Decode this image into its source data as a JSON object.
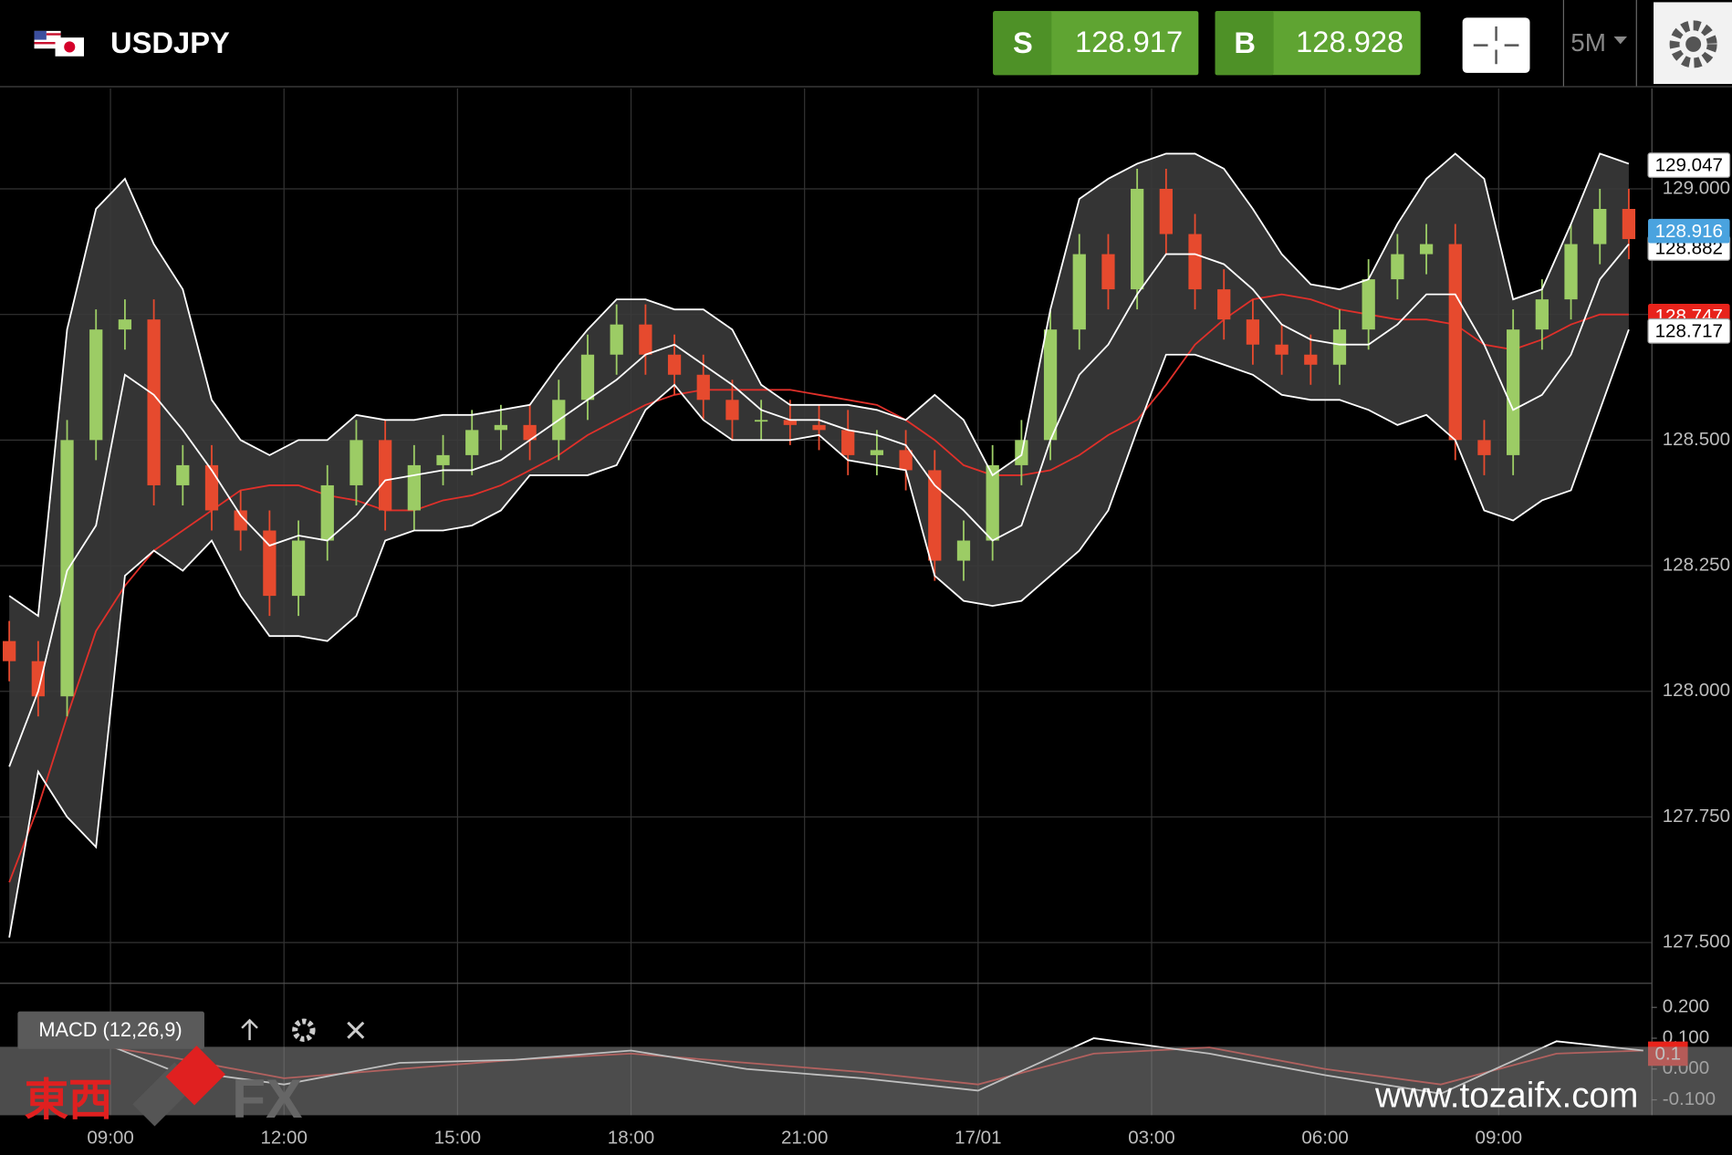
{
  "header": {
    "symbol": "USDJPY",
    "sell_label": "S",
    "sell": "128.917",
    "buy_label": "B",
    "buy": "128.928",
    "timeframe": "5M"
  },
  "chart_data": {
    "type": "candlestick",
    "x": [
      -1.75,
      -1.25,
      -0.75,
      -0.25,
      0.25,
      0.75,
      1.25,
      1.75,
      2.25,
      2.75,
      3.25,
      3.75,
      4.25,
      4.75,
      5.25,
      5.75,
      6.25,
      6.75,
      7.25,
      7.75,
      8.25,
      8.75,
      9.25,
      9.75,
      10.25,
      10.75,
      11.25,
      11.75,
      12.25,
      12.75,
      13.25,
      13.75,
      14.25,
      14.75,
      15.25,
      15.75,
      16.25,
      16.75,
      17.25,
      17.75,
      18.25,
      18.75,
      19.25,
      19.75,
      20.25,
      20.75,
      21.25,
      21.75,
      22.25,
      22.75,
      23.25,
      23.75,
      24.25,
      24.75,
      25.25,
      25.75,
      26.25
    ],
    "open": [
      128.1,
      128.06,
      127.99,
      128.5,
      128.72,
      128.74,
      128.41,
      128.45,
      128.36,
      128.32,
      128.19,
      128.3,
      128.41,
      128.5,
      128.36,
      128.45,
      128.47,
      128.52,
      128.53,
      128.5,
      128.58,
      128.67,
      128.73,
      128.67,
      128.63,
      128.58,
      128.54,
      128.54,
      128.53,
      128.52,
      128.47,
      128.48,
      128.44,
      128.26,
      128.3,
      128.45,
      128.5,
      128.72,
      128.87,
      128.8,
      129.0,
      128.91,
      128.8,
      128.74,
      128.69,
      128.67,
      128.65,
      128.72,
      128.82,
      128.87,
      128.89,
      128.5,
      128.47,
      128.72,
      128.78,
      128.89,
      128.96
    ],
    "high": [
      128.14,
      128.1,
      128.54,
      128.76,
      128.78,
      128.78,
      128.49,
      128.49,
      128.4,
      128.36,
      128.34,
      128.45,
      128.54,
      128.54,
      128.49,
      128.51,
      128.56,
      128.57,
      128.57,
      128.62,
      128.71,
      128.77,
      128.77,
      128.71,
      128.67,
      128.62,
      128.58,
      128.58,
      128.57,
      128.56,
      128.52,
      128.52,
      128.48,
      128.34,
      128.49,
      128.54,
      128.76,
      128.91,
      128.91,
      129.04,
      129.04,
      128.95,
      128.84,
      128.78,
      128.73,
      128.71,
      128.76,
      128.86,
      128.91,
      128.93,
      128.93,
      128.54,
      128.76,
      128.82,
      128.93,
      129.0,
      129.0
    ],
    "low": [
      128.02,
      127.95,
      127.95,
      128.46,
      128.68,
      128.37,
      128.37,
      128.32,
      128.28,
      128.15,
      128.15,
      128.26,
      128.37,
      128.32,
      128.32,
      128.41,
      128.43,
      128.48,
      128.46,
      128.46,
      128.54,
      128.63,
      128.63,
      128.59,
      128.54,
      128.5,
      128.5,
      128.49,
      128.48,
      128.43,
      128.43,
      128.4,
      128.22,
      128.22,
      128.26,
      128.41,
      128.46,
      128.68,
      128.76,
      128.76,
      128.87,
      128.76,
      128.7,
      128.65,
      128.63,
      128.61,
      128.61,
      128.68,
      128.78,
      128.83,
      128.46,
      128.43,
      128.43,
      128.68,
      128.74,
      128.85,
      128.86
    ],
    "close": [
      128.06,
      127.99,
      128.5,
      128.72,
      128.74,
      128.41,
      128.45,
      128.36,
      128.32,
      128.19,
      128.3,
      128.41,
      128.5,
      128.36,
      128.45,
      128.47,
      128.52,
      128.53,
      128.5,
      128.58,
      128.67,
      128.73,
      128.67,
      128.63,
      128.58,
      128.54,
      128.54,
      128.53,
      128.52,
      128.47,
      128.48,
      128.44,
      128.26,
      128.3,
      128.45,
      128.5,
      128.72,
      128.87,
      128.8,
      129.0,
      128.91,
      128.8,
      128.74,
      128.69,
      128.67,
      128.65,
      128.72,
      128.82,
      128.87,
      128.89,
      128.5,
      128.47,
      128.72,
      128.78,
      128.89,
      128.96,
      128.9
    ],
    "up_color": "#9ccc65",
    "down_color": "#e64a2e",
    "bollinger": {
      "color": "#ffffff",
      "fill": "#3a3a3a",
      "upper": [
        128.19,
        128.15,
        128.72,
        128.96,
        129.02,
        128.89,
        128.8,
        128.58,
        128.5,
        128.47,
        128.5,
        128.5,
        128.55,
        128.54,
        128.54,
        128.55,
        128.55,
        128.56,
        128.57,
        128.65,
        128.72,
        128.78,
        128.78,
        128.76,
        128.76,
        128.72,
        128.61,
        128.57,
        128.57,
        128.57,
        128.56,
        128.54,
        128.59,
        128.54,
        128.43,
        128.47,
        128.76,
        128.98,
        129.02,
        129.05,
        129.07,
        129.07,
        129.04,
        128.96,
        128.87,
        128.81,
        128.8,
        128.82,
        128.93,
        129.02,
        129.07,
        129.02,
        128.78,
        128.8,
        128.93,
        129.07,
        129.05
      ],
      "middle": [
        127.85,
        128.0,
        128.24,
        128.33,
        128.63,
        128.59,
        128.52,
        128.44,
        128.35,
        128.29,
        128.31,
        128.3,
        128.35,
        128.42,
        128.43,
        128.44,
        128.44,
        128.46,
        128.5,
        128.54,
        128.58,
        128.62,
        128.67,
        128.69,
        128.65,
        128.61,
        128.56,
        128.54,
        128.54,
        128.52,
        128.51,
        128.49,
        128.41,
        128.36,
        128.3,
        128.33,
        128.5,
        128.63,
        128.69,
        128.79,
        128.87,
        128.87,
        128.85,
        128.8,
        128.73,
        128.7,
        128.69,
        128.69,
        128.73,
        128.79,
        128.79,
        128.69,
        128.56,
        128.59,
        128.67,
        128.82,
        128.89
      ],
      "lower": [
        127.51,
        127.84,
        127.75,
        127.69,
        128.23,
        128.28,
        128.24,
        128.3,
        128.19,
        128.11,
        128.11,
        128.1,
        128.15,
        128.3,
        128.32,
        128.32,
        128.33,
        128.36,
        128.43,
        128.43,
        128.43,
        128.45,
        128.56,
        128.61,
        128.54,
        128.5,
        128.5,
        128.5,
        128.51,
        128.46,
        128.45,
        128.44,
        128.23,
        128.18,
        128.17,
        128.18,
        128.23,
        128.28,
        128.36,
        128.52,
        128.67,
        128.67,
        128.65,
        128.63,
        128.59,
        128.58,
        128.58,
        128.56,
        128.53,
        128.55,
        128.5,
        128.36,
        128.34,
        128.38,
        128.4,
        128.56,
        128.72
      ]
    },
    "moving_average": {
      "color": "#e0302a",
      "values": [
        127.62,
        127.77,
        127.95,
        128.12,
        128.21,
        128.28,
        128.32,
        128.36,
        128.4,
        128.41,
        128.41,
        128.39,
        128.38,
        128.36,
        128.36,
        128.38,
        128.39,
        128.41,
        128.44,
        128.47,
        128.51,
        128.54,
        128.57,
        128.59,
        128.6,
        128.6,
        128.6,
        128.6,
        128.59,
        128.58,
        128.57,
        128.54,
        128.5,
        128.45,
        128.43,
        128.43,
        128.44,
        128.47,
        128.51,
        128.54,
        128.61,
        128.69,
        128.74,
        128.78,
        128.79,
        128.78,
        128.76,
        128.75,
        128.74,
        128.74,
        128.73,
        128.69,
        128.68,
        128.7,
        128.73,
        128.75,
        128.75
      ]
    },
    "xlim": [
      -1.91,
      26.64
    ],
    "xticks": [
      {
        "value": 0,
        "label": "09:00"
      },
      {
        "value": 3,
        "label": "12:00"
      },
      {
        "value": 6,
        "label": "15:00"
      },
      {
        "value": 9,
        "label": "18:00"
      },
      {
        "value": 12,
        "label": "21:00"
      },
      {
        "value": 15,
        "label": "17/01"
      },
      {
        "value": 18,
        "label": "03:00"
      },
      {
        "value": 21,
        "label": "06:00"
      },
      {
        "value": 24,
        "label": "09:00"
      }
    ],
    "ylim": [
      127.42,
      129.2
    ],
    "yticks": [
      {
        "value": 127.5,
        "label": "127.500"
      },
      {
        "value": 127.75,
        "label": "127.750"
      },
      {
        "value": 128,
        "label": "128.000"
      },
      {
        "value": 128.25,
        "label": "128.250"
      },
      {
        "value": 128.5,
        "label": "128.500"
      },
      {
        "value": 128.75,
        "label": "128.750"
      },
      {
        "value": 129,
        "label": "129.000"
      }
    ],
    "grid": true,
    "price_labels": [
      {
        "value": 129.047,
        "color": "#ffffff"
      },
      {
        "value": 128.882,
        "color": "#ffffff"
      },
      {
        "value": 128.916,
        "color": "#4aa3df"
      },
      {
        "value": 128.747,
        "color": "#e8231b"
      },
      {
        "value": 128.717,
        "color": "#ffffff"
      }
    ]
  },
  "macd": {
    "title": "MACD (12,26,9)",
    "x": [
      -1,
      1,
      3,
      5,
      7,
      9,
      11,
      13,
      15,
      17,
      19,
      21,
      23,
      25,
      26.5
    ],
    "macd_color": "#ffffff",
    "macd": [
      0.15,
      0.0,
      -0.05,
      0.02,
      0.03,
      0.06,
      0.0,
      -0.03,
      -0.07,
      0.1,
      0.05,
      -0.02,
      -0.08,
      0.09,
      0.06
    ],
    "signal_color": "#e0302a",
    "signal": [
      0.1,
      0.04,
      -0.03,
      0.0,
      0.03,
      0.05,
      0.02,
      -0.01,
      -0.05,
      0.05,
      0.07,
      0.0,
      -0.05,
      0.05,
      0.06
    ],
    "ylim": [
      -0.15,
      0.28
    ],
    "yticks": [
      {
        "value": 0.2,
        "label": "0.200"
      },
      {
        "value": 0.1,
        "label": "0.100"
      },
      {
        "value": 0,
        "label": "0.000"
      },
      {
        "value": -0.1,
        "label": "-0.100"
      }
    ],
    "badge": {
      "value": 0.1,
      "color": "#e8231b"
    }
  },
  "watermark": {
    "brand": "東西",
    "logo": "FX",
    "url": "www.tozaifx.com"
  }
}
